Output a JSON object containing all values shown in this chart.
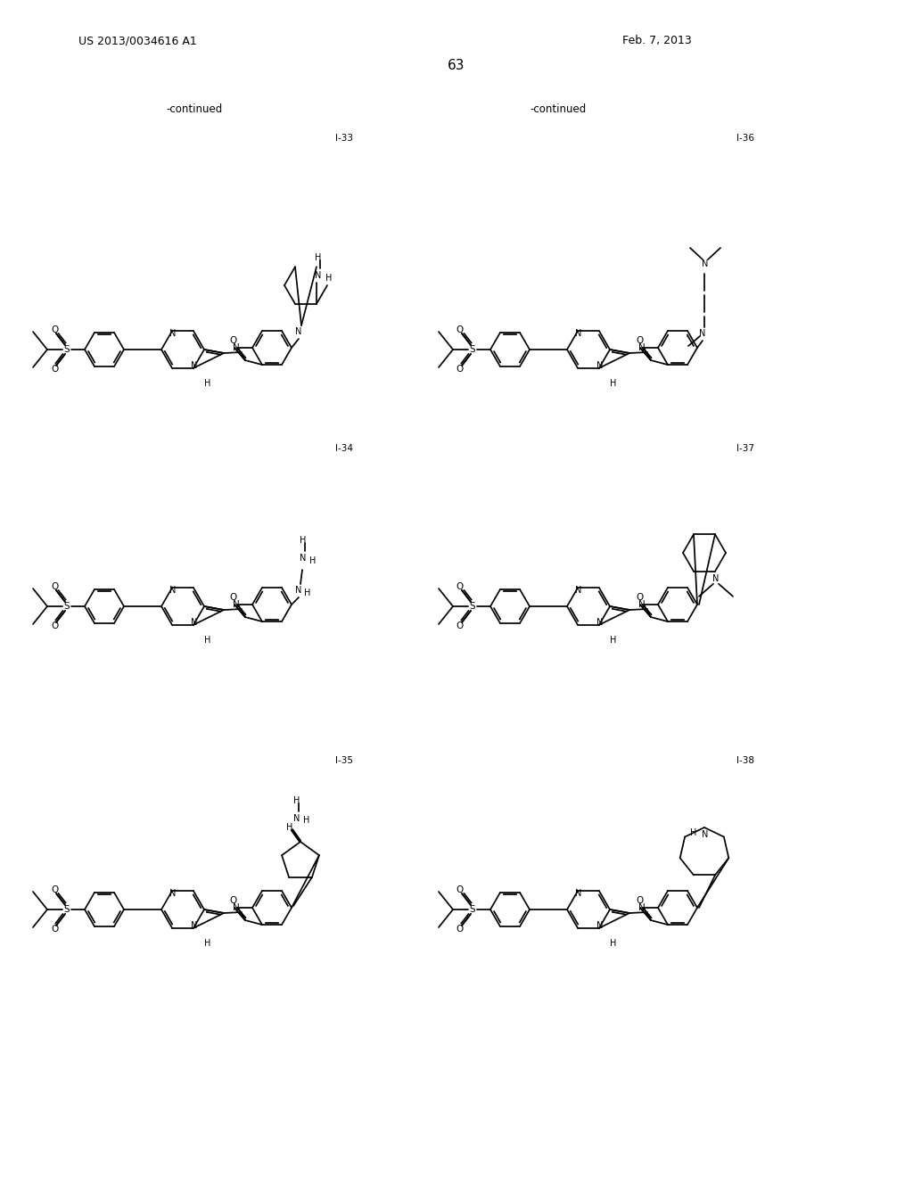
{
  "page_header_left": "US 2013/0034616 A1",
  "page_header_right": "Feb. 7, 2013",
  "page_number": "63",
  "continued_left": "-continued",
  "continued_right": "-continued",
  "compound_labels": [
    "I-33",
    "I-34",
    "I-35",
    "I-36",
    "I-37",
    "I-38"
  ],
  "bg": "#ffffff",
  "lc": "#000000"
}
